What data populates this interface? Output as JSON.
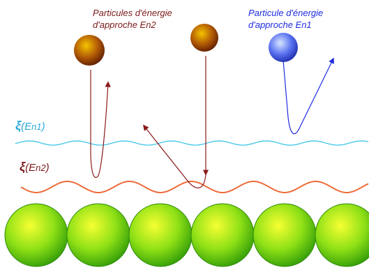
{
  "labels": {
    "particles_en2_line1": "Particules d'énergie",
    "particles_en2_line2": "d'approche En2",
    "particle_en1_line1": "Particule d'énergie",
    "particle_en1_line2": "d'approche En1",
    "xi_symbol": "ξ",
    "xi_en1_open": "(E",
    "xi_en1_sub": "n1",
    "xi_en1_close": ")",
    "xi_en2_open": "(E",
    "xi_en2_sub": "n2",
    "xi_en2_close": ")"
  },
  "colors": {
    "en2_text": "#7a1a1a",
    "en1_text": "#1f2ce0",
    "curve_en1": "#3ec6e6",
    "curve_en2": "#ee6a3a",
    "trajectory_en2": "#8b1a1a",
    "trajectory_en1": "#1f2ce0",
    "surface_atom": "#8ee016"
  },
  "counts": {
    "surface_atoms": 6
  }
}
